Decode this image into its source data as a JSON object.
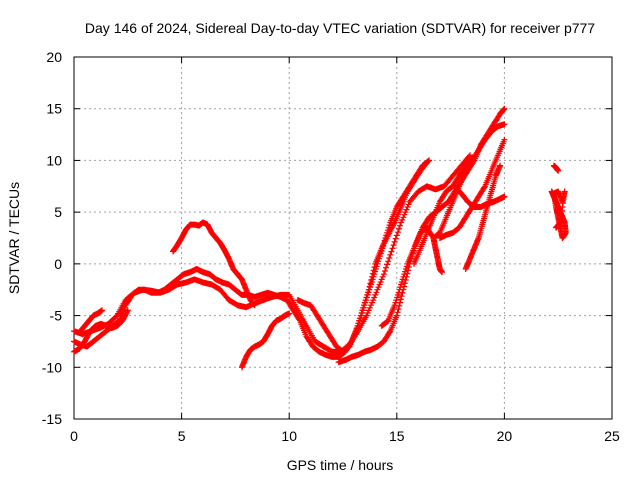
{
  "chart_data": {
    "type": "scatter",
    "title": "Day 146 of 2024, Sidereal Day-to-day VTEC variation (SDTVAR) for receiver p777",
    "xlabel": "GPS time / hours",
    "ylabel": "SDTVAR / TECUs",
    "xlim": [
      0,
      25
    ],
    "ylim": [
      -15,
      20
    ],
    "x_ticks": [
      0,
      5,
      10,
      15,
      20,
      25
    ],
    "y_ticks": [
      -15,
      -10,
      -5,
      0,
      5,
      10,
      15,
      20
    ],
    "grid": true,
    "legend": "none",
    "marker": "+",
    "color": "#ff0000",
    "series": [
      {
        "x": [
          0.0,
          0.3,
          0.6,
          0.9,
          1.2,
          1.5,
          1.8,
          2.1,
          2.4,
          2.7,
          3.0,
          3.3,
          3.6,
          3.9,
          4.2,
          4.5,
          4.8,
          5.1,
          5.4,
          5.7,
          6.0,
          6.3,
          6.6,
          6.9,
          7.2,
          7.5,
          7.8,
          8.1,
          8.4,
          8.7,
          9.0,
          9.3,
          9.6,
          9.9,
          10.2,
          10.5,
          10.8,
          11.1,
          11.4,
          11.7,
          12.0,
          12.3,
          12.6,
          12.9,
          13.2,
          13.5,
          13.8,
          14.1,
          14.4,
          14.7,
          15.0,
          15.3,
          15.6,
          15.9,
          16.2,
          16.5
        ],
        "y": [
          -7.5,
          -7.8,
          -8.0,
          -7.5,
          -7.0,
          -6.5,
          -6.0,
          -5.5,
          -4.0,
          -3.0,
          -2.5,
          -2.5,
          -2.8,
          -2.8,
          -2.5,
          -2.0,
          -1.5,
          -1.0,
          -0.8,
          -0.5,
          -0.8,
          -1.0,
          -1.5,
          -1.8,
          -2.0,
          -2.5,
          -3.0,
          -3.0,
          -3.2,
          -3.0,
          -2.8,
          -3.0,
          -3.2,
          -3.5,
          -4.5,
          -5.5,
          -7.0,
          -8.0,
          -8.5,
          -8.8,
          -9.0,
          -9.0,
          -8.5,
          -7.5,
          -6.0,
          -4.0,
          -2.0,
          0.0,
          2.0,
          4.0,
          5.5,
          6.5,
          7.5,
          8.5,
          9.5,
          10.0
        ]
      },
      {
        "x": [
          0.0,
          0.4,
          0.8,
          1.2,
          1.6,
          2.0,
          2.4,
          2.8,
          3.2,
          3.6,
          4.0,
          4.4,
          4.8,
          5.2,
          5.6,
          6.0,
          6.4,
          6.8,
          7.2,
          7.6,
          8.0,
          8.4,
          8.8,
          9.2,
          9.6,
          10.0,
          10.4,
          10.8,
          11.2,
          11.6,
          12.0,
          12.4,
          12.8,
          13.2,
          13.6,
          14.0,
          14.4,
          14.8,
          15.2,
          15.6,
          16.0,
          16.4,
          16.8,
          17.2,
          17.6,
          18.0,
          18.4
        ],
        "y": [
          -6.5,
          -6.8,
          -6.5,
          -6.2,
          -5.8,
          -5.0,
          -3.5,
          -2.8,
          -2.5,
          -2.6,
          -2.8,
          -2.5,
          -2.0,
          -1.8,
          -1.5,
          -1.8,
          -2.0,
          -2.5,
          -3.5,
          -4.0,
          -4.2,
          -3.8,
          -3.5,
          -3.2,
          -3.0,
          -3.0,
          -4.5,
          -6.0,
          -7.5,
          -8.0,
          -8.5,
          -8.5,
          -7.8,
          -6.5,
          -5.0,
          -3.0,
          -1.0,
          1.5,
          4.0,
          6.0,
          7.0,
          7.5,
          7.2,
          7.5,
          8.5,
          9.5,
          10.5
        ]
      },
      {
        "x": [
          0.0,
          0.25,
          0.5,
          0.75,
          1.0,
          1.25,
          1.5,
          1.75,
          2.0,
          2.25,
          2.5
        ],
        "y": [
          -8.5,
          -8.2,
          -7.5,
          -6.5,
          -6.0,
          -5.8,
          -6.0,
          -6.2,
          -6.0,
          -5.5,
          -4.5
        ]
      },
      {
        "x": [
          0.3,
          0.5,
          0.7,
          0.9,
          1.1,
          1.3
        ],
        "y": [
          -6.5,
          -6.0,
          -5.5,
          -5.0,
          -4.8,
          -4.5
        ]
      },
      {
        "x": [
          4.6,
          4.8,
          5.0,
          5.2,
          5.4,
          5.6,
          5.8,
          6.0,
          6.2,
          6.4,
          6.6,
          6.8,
          7.0,
          7.2,
          7.4,
          7.6,
          7.8,
          8.0,
          8.2,
          8.4
        ],
        "y": [
          1.2,
          1.8,
          2.5,
          3.3,
          3.8,
          3.8,
          3.7,
          4.0,
          3.8,
          3.0,
          2.5,
          2.0,
          1.3,
          0.5,
          -0.5,
          -1.0,
          -1.5,
          -2.5,
          -3.5,
          -4.0
        ]
      },
      {
        "x": [
          7.8,
          8.0,
          8.2,
          8.4,
          8.6,
          8.8,
          9.0,
          9.2,
          9.4,
          9.6,
          9.8,
          10.0
        ],
        "y": [
          -10.0,
          -9.0,
          -8.3,
          -8.0,
          -7.8,
          -7.5,
          -6.8,
          -6.0,
          -5.5,
          -5.3,
          -5.0,
          -4.8
        ]
      },
      {
        "x": [
          10.4,
          10.7,
          11.0,
          11.3,
          11.6,
          11.9,
          12.2,
          12.5,
          12.8,
          13.1,
          13.4,
          13.7,
          14.0,
          14.3,
          14.6,
          14.9,
          15.2,
          15.5,
          15.8,
          16.1,
          16.4
        ],
        "y": [
          -3.5,
          -3.8,
          -4.0,
          -5.0,
          -6.0,
          -7.0,
          -8.0,
          -8.5,
          -8.0,
          -6.5,
          -4.5,
          -2.5,
          0.0,
          1.5,
          2.8,
          4.0,
          5.5,
          7.0,
          8.0,
          9.0,
          9.8
        ]
      },
      {
        "x": [
          12.3,
          12.6,
          12.9,
          13.2,
          13.5,
          13.8,
          14.1,
          14.4,
          14.7,
          15.0,
          15.3,
          15.6,
          15.9,
          16.2,
          16.5,
          16.8,
          17.1,
          17.4,
          17.7,
          18.0,
          18.3,
          18.6,
          18.9,
          19.2,
          19.5,
          19.8,
          20.0
        ],
        "y": [
          -9.5,
          -9.3,
          -9.0,
          -8.8,
          -8.5,
          -8.3,
          -8.0,
          -7.5,
          -6.5,
          -5.0,
          -2.5,
          0.0,
          2.0,
          3.5,
          4.5,
          5.0,
          5.5,
          6.0,
          7.0,
          8.0,
          9.0,
          10.0,
          11.5,
          12.5,
          13.5,
          14.5,
          15.0
        ]
      },
      {
        "x": [
          14.3,
          14.6,
          14.9,
          15.2,
          15.5,
          15.8,
          16.1,
          16.4,
          16.7,
          17.0,
          17.3,
          17.6,
          17.9,
          18.2,
          18.5,
          18.8,
          19.1,
          19.4,
          19.7,
          20.0
        ],
        "y": [
          -6.0,
          -5.5,
          -4.0,
          -2.0,
          0.0,
          1.5,
          3.0,
          3.5,
          2.5,
          3.0,
          4.5,
          6.0,
          7.5,
          9.0,
          10.0,
          11.0,
          12.0,
          12.8,
          13.3,
          13.5
        ]
      },
      {
        "x": [
          15.8,
          16.1,
          16.4,
          16.7,
          17.0,
          17.3,
          17.6,
          17.9,
          18.2,
          18.5
        ],
        "y": [
          0.0,
          1.5,
          3.0,
          4.5,
          6.0,
          7.0,
          7.5,
          8.5,
          9.5,
          10.3
        ]
      },
      {
        "x": [
          16.7,
          16.8,
          16.9,
          17.0,
          17.1
        ],
        "y": [
          2.5,
          1.5,
          0.5,
          -0.5,
          -0.8
        ]
      },
      {
        "x": [
          17.7,
          18.0,
          18.3,
          18.6,
          18.9,
          19.2,
          19.5,
          19.8,
          20.0
        ],
        "y": [
          7.5,
          6.8,
          6.0,
          5.5,
          5.5,
          5.8,
          6.0,
          6.3,
          6.5
        ]
      },
      {
        "x": [
          17.0,
          17.3,
          17.6,
          17.9,
          18.2,
          18.5,
          18.8,
          19.1,
          19.4,
          19.7,
          20.0
        ],
        "y": [
          2.5,
          2.8,
          3.0,
          3.5,
          4.5,
          5.5,
          6.5,
          7.5,
          9.0,
          10.5,
          12.0
        ]
      },
      {
        "x": [
          18.2,
          18.4,
          18.6,
          18.8,
          19.0,
          19.2,
          19.4,
          19.6,
          19.8
        ],
        "y": [
          -0.5,
          0.5,
          1.5,
          2.5,
          4.0,
          5.5,
          7.0,
          8.5,
          9.5
        ]
      },
      {
        "x": [
          22.3,
          22.4,
          22.5
        ],
        "y": [
          9.5,
          9.3,
          9.0
        ]
      },
      {
        "x": [
          22.2,
          22.3,
          22.4,
          22.5,
          22.6,
          22.7,
          22.8,
          22.85,
          22.7,
          22.6,
          22.5,
          22.4,
          22.3,
          22.5,
          22.7,
          22.8,
          22.6,
          22.4
        ],
        "y": [
          7.0,
          6.5,
          6.0,
          5.5,
          5.0,
          4.5,
          4.0,
          3.0,
          2.5,
          3.5,
          4.5,
          5.5,
          6.8,
          7.0,
          6.0,
          7.0,
          4.0,
          3.5
        ]
      }
    ]
  }
}
